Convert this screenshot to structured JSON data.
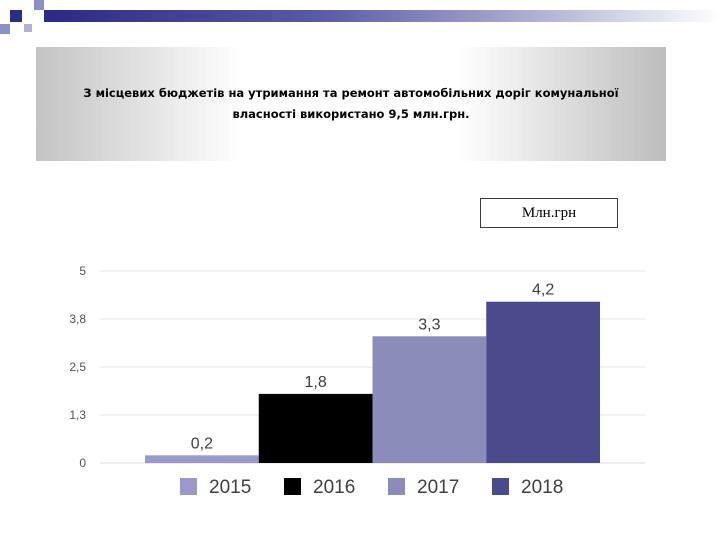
{
  "slide": {
    "title": "З місцевих  бюджетів на утримання та ремонт автомобільних доріг комунальної власності  використано 9,5 млн.грн.",
    "unit_label": "Млн.грн"
  },
  "colors": {
    "deco_dark": "#2c2c86",
    "deco_light": "#9a9ad0"
  },
  "chart_data": {
    "type": "bar",
    "categories": [
      ""
    ],
    "series": [
      {
        "name": "2015",
        "values": [
          0.2
        ],
        "label": "0,2",
        "color": "#9999cc"
      },
      {
        "name": "2016",
        "values": [
          1.8
        ],
        "label": "1,8",
        "color": "#000000"
      },
      {
        "name": "2017",
        "values": [
          3.3
        ],
        "label": "3,3",
        "color": "#8c8cba"
      },
      {
        "name": "2018",
        "values": [
          4.2
        ],
        "label": "4,2",
        "color": "#4a4a8c"
      }
    ],
    "y_ticks": [
      0,
      1.25,
      2.5,
      3.75,
      5
    ],
    "y_tick_labels": [
      "0",
      "1,3",
      "2,5",
      "3,8",
      "5"
    ],
    "ylim": [
      0,
      5
    ],
    "grid": true,
    "legend": "bottom"
  }
}
